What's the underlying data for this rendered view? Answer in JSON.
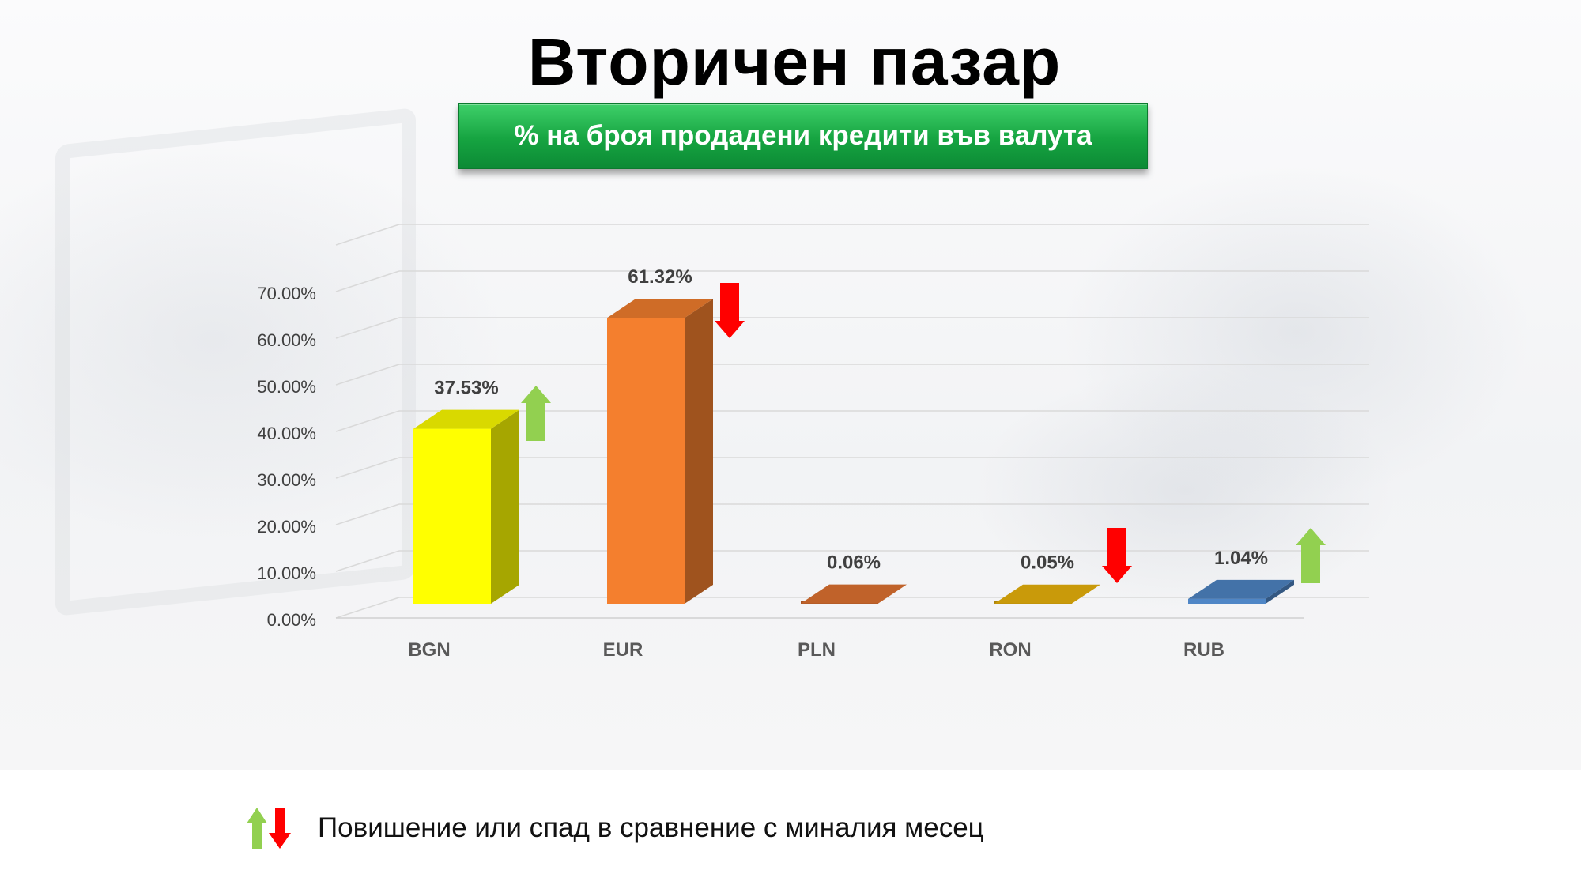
{
  "header": {
    "title": "Вторичен пазар",
    "subtitle": "% на броя продадени кредити във валута"
  },
  "legend": {
    "text": "Повишение или спад в сравнение с миналия месец",
    "up_icon": "green-up-arrow-icon",
    "down_icon": "red-down-arrow-icon"
  },
  "colors": {
    "up_arrow": "#92d050",
    "down_arrow": "#ff0000",
    "banner": "#16a441"
  },
  "chart_data": {
    "type": "bar",
    "categories": [
      "BGN",
      "EUR",
      "PLN",
      "RON",
      "RUB"
    ],
    "values": [
      37.53,
      61.32,
      0.06,
      0.05,
      1.04
    ],
    "value_labels": [
      "37.53%",
      "61.32%",
      "0.06%",
      "0.05%",
      "1.04%"
    ],
    "trend": [
      "up",
      "down",
      "none",
      "down",
      "up"
    ],
    "bar_colors": [
      "#ffff00",
      "#f47f2e",
      "#c0622a",
      "#c99a0a",
      "#4f86c6"
    ],
    "ylim": [
      0,
      80
    ],
    "yticks": [
      0,
      10,
      20,
      30,
      40,
      50,
      60,
      70
    ],
    "ytick_labels": [
      "0.00%",
      "10.00%",
      "20.00%",
      "30.00%",
      "40.00%",
      "50.00%",
      "60.00%",
      "70.00%"
    ],
    "grid": true,
    "three_d": true
  }
}
